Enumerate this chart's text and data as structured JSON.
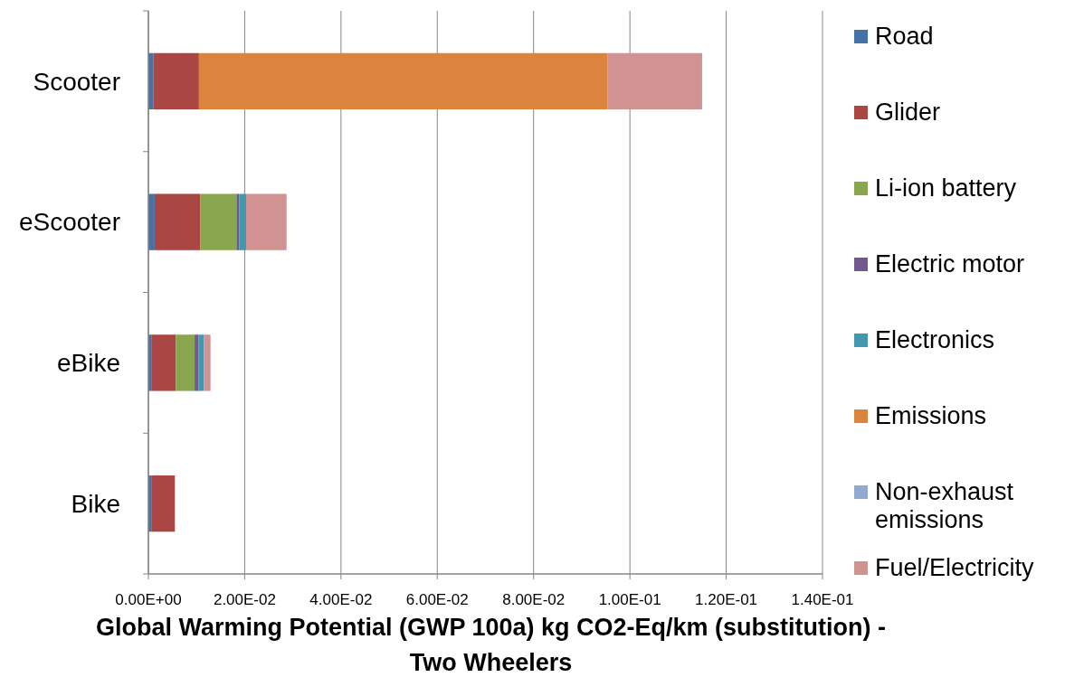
{
  "chart_data": {
    "type": "bar",
    "orientation": "horizontal",
    "stacked": true,
    "xlabel": "Global Warming Potential (GWP 100a) kg CO2-Eq/km (substitution) - Two Wheelers",
    "categories": [
      "Scooter",
      "eScooter",
      "eBike",
      "Bike"
    ],
    "series": [
      {
        "name": "Road",
        "color": "#4572a7",
        "values": [
          0.001,
          0.0013,
          0.0006,
          0.0006
        ]
      },
      {
        "name": "Glider",
        "color": "#aa4643",
        "values": [
          0.0095,
          0.0095,
          0.0051,
          0.0049
        ]
      },
      {
        "name": "Li-ion battery",
        "color": "#89a54e",
        "values": [
          null,
          0.0075,
          0.0039,
          null
        ]
      },
      {
        "name": "Electric motor",
        "color": "#71588f",
        "values": [
          null,
          0.0006,
          0.0008,
          null
        ]
      },
      {
        "name": "Electronics",
        "color": "#4198af",
        "values": [
          null,
          0.0014,
          0.0011,
          null
        ]
      },
      {
        "name": "Emissions",
        "color": "#db843d",
        "values": [
          0.0849,
          null,
          null,
          null
        ]
      },
      {
        "name": "Non-exhaust emissions",
        "color": "#93a9cf",
        "values": [
          null,
          null,
          null,
          null
        ]
      },
      {
        "name": "Fuel/Electricity",
        "color": "#d19392",
        "values": [
          0.0196,
          0.0084,
          0.0014,
          null
        ]
      }
    ],
    "xlim": [
      0,
      0.14
    ],
    "xticks": [
      {
        "value": 0,
        "label": "0.00E+00"
      },
      {
        "value": 0.02,
        "label": "2.00E-02"
      },
      {
        "value": 0.04,
        "label": "4.00E-02"
      },
      {
        "value": 0.06,
        "label": "6.00E-02"
      },
      {
        "value": 0.08,
        "label": "8.00E-02"
      },
      {
        "value": 0.1,
        "label": "1.00E-01"
      },
      {
        "value": 0.12,
        "label": "1.20E-01"
      },
      {
        "value": 0.14,
        "label": "1.40E-01"
      }
    ],
    "grid": "x",
    "legend": "right"
  }
}
